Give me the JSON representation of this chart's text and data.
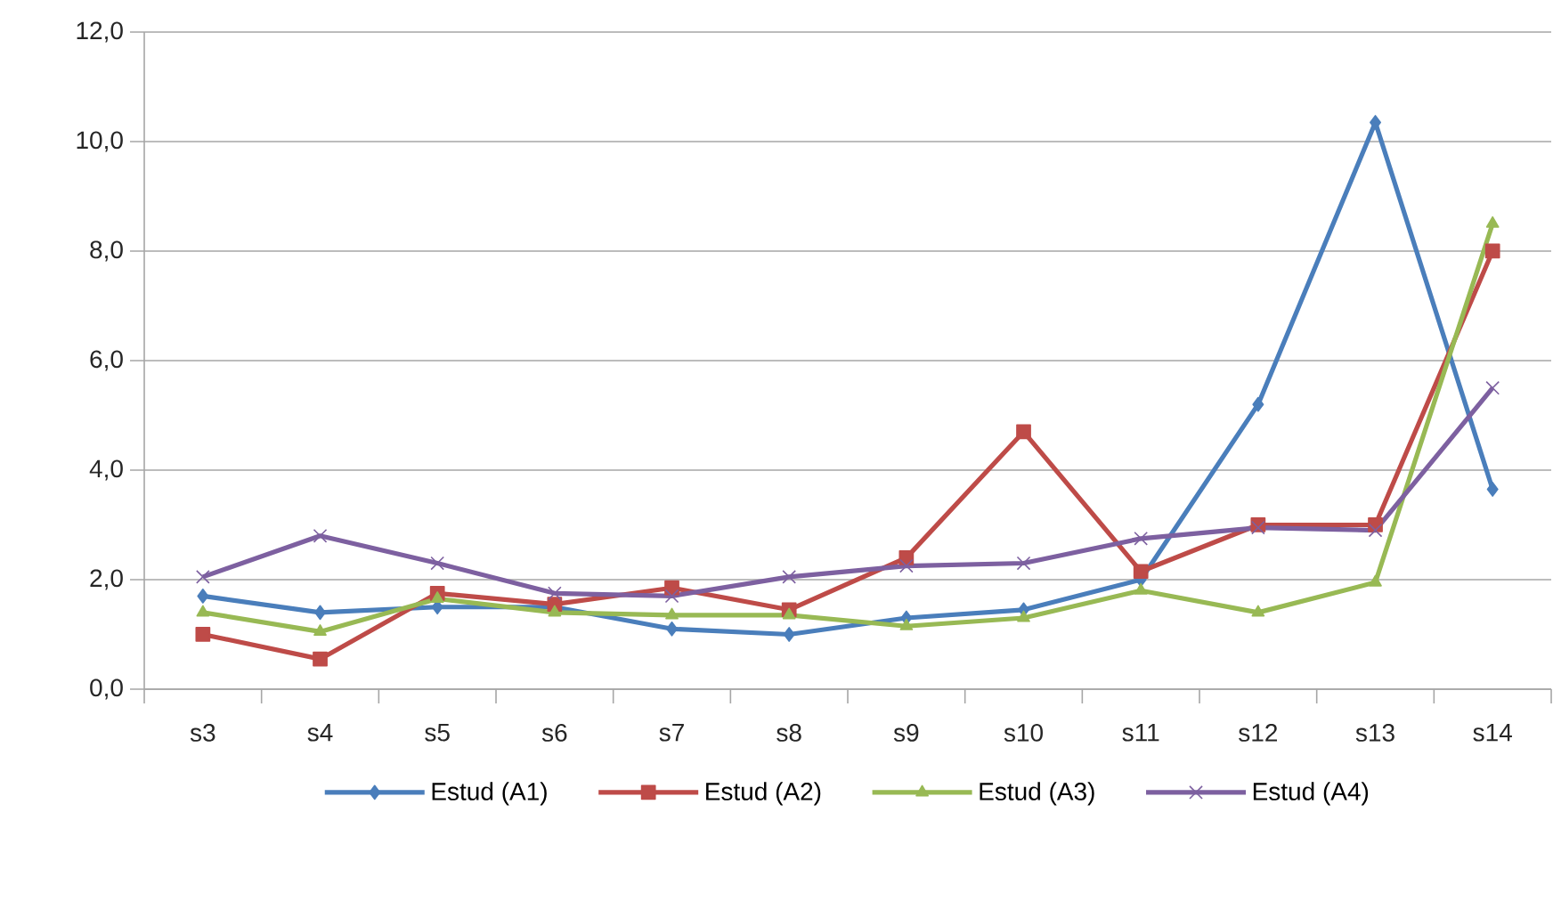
{
  "chart_data": {
    "type": "line",
    "categories": [
      "s3",
      "s4",
      "s5",
      "s6",
      "s7",
      "s8",
      "s9",
      "s10",
      "s11",
      "s12",
      "s13",
      "s14"
    ],
    "series": [
      {
        "name": "Estud (A1)",
        "color": "#4a7ebb",
        "marker": "diamond",
        "values": [
          1.7,
          1.4,
          1.5,
          1.5,
          1.1,
          1.0,
          1.3,
          1.45,
          2.0,
          5.2,
          10.35,
          3.65
        ]
      },
      {
        "name": "Estud (A2)",
        "color": "#be4b48",
        "marker": "square",
        "values": [
          1.0,
          0.55,
          1.75,
          1.55,
          1.85,
          1.45,
          2.4,
          4.7,
          2.15,
          3.0,
          3.0,
          8.0
        ]
      },
      {
        "name": "Estud (A3)",
        "color": "#98b954",
        "marker": "triangle",
        "values": [
          1.4,
          1.05,
          1.65,
          1.4,
          1.35,
          1.35,
          1.15,
          1.3,
          1.8,
          1.4,
          1.95,
          8.5
        ]
      },
      {
        "name": "Estud (A4)",
        "color": "#7d60a0",
        "marker": "cross",
        "values": [
          2.05,
          2.8,
          2.3,
          1.75,
          1.7,
          2.05,
          2.25,
          2.3,
          2.75,
          2.95,
          2.9,
          5.5
        ]
      }
    ],
    "ylim": [
      0,
      12
    ],
    "yticks": [
      {
        "value": 0,
        "label": "0,0"
      },
      {
        "value": 2,
        "label": "2,0"
      },
      {
        "value": 4,
        "label": "4,0"
      },
      {
        "value": 6,
        "label": "6,0"
      },
      {
        "value": 8,
        "label": "8,0"
      },
      {
        "value": 10,
        "label": "10,0"
      },
      {
        "value": 12,
        "label": "12,0"
      }
    ],
    "grid": "y",
    "legend": "bottom"
  }
}
